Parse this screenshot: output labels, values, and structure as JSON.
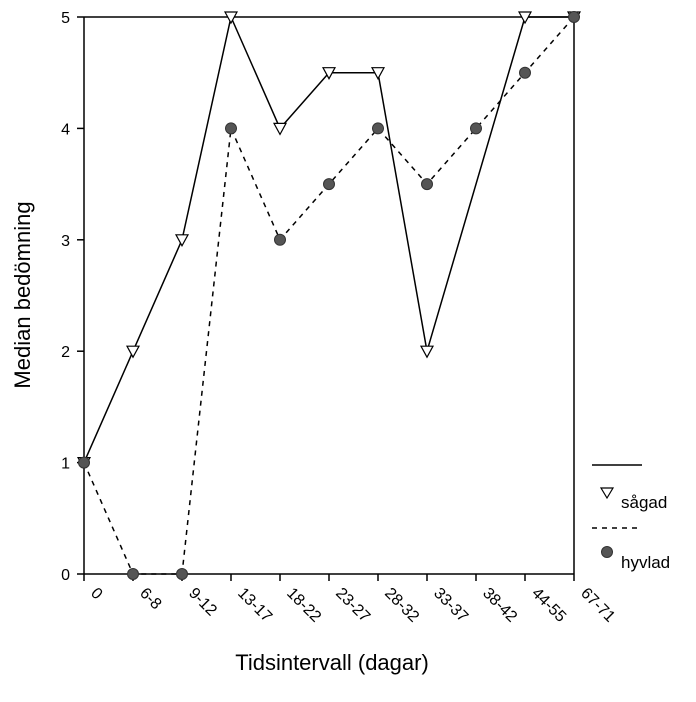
{
  "chart_data": {
    "type": "line",
    "xlabel": "Tidsintervall (dagar)",
    "ylabel": "Median bedömning",
    "categories": [
      "0",
      "6-8",
      "9-12",
      "13-17",
      "18-22",
      "23-27",
      "28-32",
      "33-37",
      "38-42",
      "44-55",
      "67-71"
    ],
    "ylim": [
      0,
      5
    ],
    "yticks": [
      0,
      1,
      2,
      3,
      4,
      5
    ],
    "series": [
      {
        "name": "sågad",
        "line_style": "solid",
        "marker": "open-triangle-down",
        "color": "#000000",
        "points": [
          {
            "x": "0",
            "y": 1
          },
          {
            "x": "6-8",
            "y": 2
          },
          {
            "x": "9-12",
            "y": 3
          },
          {
            "x": "13-17",
            "y": 5
          },
          {
            "x": "18-22",
            "y": 4
          },
          {
            "x": "23-27",
            "y": 4.5
          },
          {
            "x": "28-32",
            "y": 4.5
          },
          {
            "x": "33-37",
            "y": 2
          },
          {
            "x": "44-55",
            "y": 5
          },
          {
            "x": "67-71",
            "y": 5
          }
        ]
      },
      {
        "name": "hyvlad",
        "line_style": "dashed",
        "marker": "filled-circle",
        "color": "#555555",
        "points": [
          {
            "x": "0",
            "y": 1
          },
          {
            "x": "6-8",
            "y": 0
          },
          {
            "x": "9-12",
            "y": 0
          },
          {
            "x": "13-17",
            "y": 4
          },
          {
            "x": "18-22",
            "y": 3
          },
          {
            "x": "23-27",
            "y": 3.5
          },
          {
            "x": "28-32",
            "y": 4
          },
          {
            "x": "33-37",
            "y": 3.5
          },
          {
            "x": "38-42",
            "y": 4
          },
          {
            "x": "44-55",
            "y": 4.5
          },
          {
            "x": "67-71",
            "y": 5
          }
        ]
      }
    ],
    "legend_position": "right",
    "grid": false
  }
}
